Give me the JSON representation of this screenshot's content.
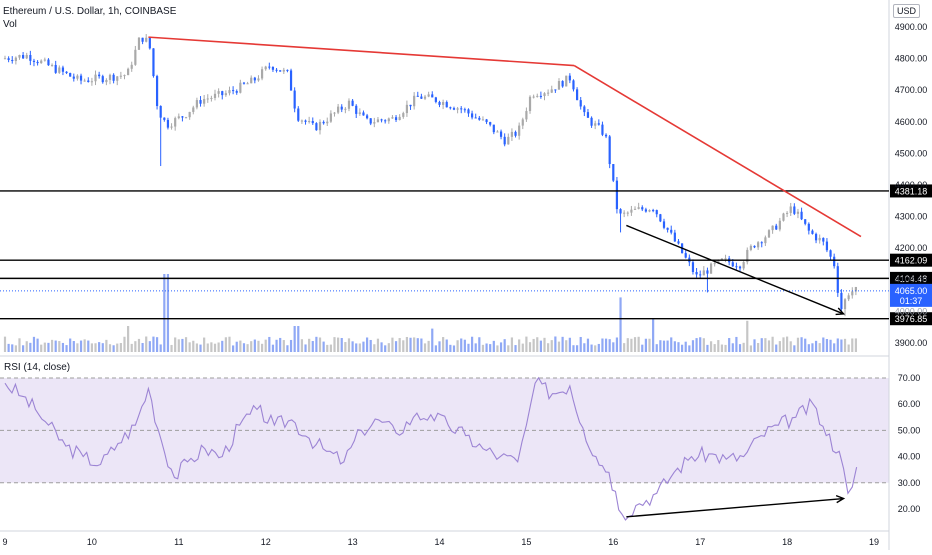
{
  "header": {
    "title": "Ethereum / U.S. Dollar, 1h, COINBASE",
    "volume_label": "Vol",
    "rsi_label": "RSI (14, close)",
    "currency": "USD"
  },
  "colors": {
    "up": "#a9a9a9",
    "down": "#2962ff",
    "trend_red": "#e53935",
    "arrow": "#000000",
    "rsi_line": "#9c84d4",
    "rsi_band": "#ece6f7",
    "price_line": "#2962ff"
  },
  "chart_data": [
    {
      "type": "candlestick",
      "name": "price",
      "ylim": [
        3870,
        4930
      ],
      "y_ticks": [
        3900,
        4000,
        4100,
        4200,
        4300,
        4400,
        4500,
        4600,
        4700,
        4800,
        4900
      ],
      "y_tick_labels": [
        "3900.00",
        "4000.00",
        "4100.00",
        "4200.00",
        "4300.00",
        "4400.00",
        "4500.00",
        "4600.00",
        "4700.00",
        "4800.00",
        "4900.00"
      ],
      "x_range": [
        9,
        19
      ],
      "x_ticks": [
        9,
        10,
        11,
        12,
        13,
        14,
        15,
        16,
        17,
        18,
        19
      ],
      "x_tick_labels": [
        "9",
        "10",
        "11",
        "12",
        "13",
        "14",
        "15",
        "16",
        "17",
        "18",
        "19"
      ],
      "horizontal_levels": [
        {
          "value": 4381.18,
          "label": "4381.18"
        },
        {
          "value": 4162.09,
          "label": "4162.09"
        },
        {
          "value": 4104.48,
          "label": "4104.48"
        },
        {
          "value": 3976.85,
          "label": "3976.85"
        }
      ],
      "current_price": {
        "value": 4065.0,
        "label": "4065.00",
        "countdown": "01:37"
      },
      "hidden_tick_label": "4000.00",
      "trendlines": [
        {
          "role": "resistance-1",
          "points": [
            [
              10.65,
              4868
            ],
            [
              15.55,
              4778
            ]
          ]
        },
        {
          "role": "resistance-2",
          "points": [
            [
              15.55,
              4778
            ],
            [
              18.85,
              4237
            ]
          ]
        }
      ],
      "arrows": [
        {
          "role": "price-divergence-arrow",
          "from": [
            16.15,
            4272
          ],
          "to": [
            18.65,
            3992
          ]
        }
      ],
      "path_keypoints": [
        [
          9.0,
          4800
        ],
        [
          9.3,
          4810
        ],
        [
          9.6,
          4770
        ],
        [
          9.9,
          4730
        ],
        [
          10.2,
          4740
        ],
        [
          10.45,
          4750
        ],
        [
          10.6,
          4870
        ],
        [
          10.7,
          4850
        ],
        [
          10.8,
          4640
        ],
        [
          10.9,
          4590
        ],
        [
          11.1,
          4620
        ],
        [
          11.3,
          4670
        ],
        [
          11.6,
          4690
        ],
        [
          11.9,
          4730
        ],
        [
          12.1,
          4780
        ],
        [
          12.3,
          4750
        ],
        [
          12.4,
          4620
        ],
        [
          12.6,
          4580
        ],
        [
          12.8,
          4620
        ],
        [
          13.0,
          4660
        ],
        [
          13.2,
          4600
        ],
        [
          13.5,
          4610
        ],
        [
          13.8,
          4680
        ],
        [
          14.0,
          4670
        ],
        [
          14.3,
          4640
        ],
        [
          14.6,
          4590
        ],
        [
          14.8,
          4540
        ],
        [
          14.95,
          4570
        ],
        [
          15.1,
          4690
        ],
        [
          15.3,
          4700
        ],
        [
          15.55,
          4740
        ],
        [
          15.7,
          4620
        ],
        [
          15.95,
          4560
        ],
        [
          16.1,
          4300
        ],
        [
          16.3,
          4320
        ],
        [
          16.5,
          4330
        ],
        [
          16.8,
          4200
        ],
        [
          17.0,
          4110
        ],
        [
          17.3,
          4160
        ],
        [
          17.5,
          4150
        ],
        [
          17.65,
          4210
        ],
        [
          17.85,
          4250
        ],
        [
          18.1,
          4330
        ],
        [
          18.3,
          4250
        ],
        [
          18.45,
          4220
        ],
        [
          18.6,
          4140
        ],
        [
          18.65,
          4000
        ],
        [
          18.75,
          4060
        ],
        [
          18.8,
          4065
        ]
      ],
      "volume_spikes": [
        [
          10.85,
          3.0
        ],
        [
          16.08,
          2.1
        ],
        [
          17.55,
          1.2
        ],
        [
          16.45,
          1.3
        ],
        [
          12.35,
          1.0
        ],
        [
          13.9,
          0.9
        ],
        [
          10.4,
          1.0
        ]
      ]
    },
    {
      "type": "line",
      "name": "RSI (14, close)",
      "ylim": [
        10,
        75
      ],
      "y_ticks": [
        20,
        30,
        40,
        50,
        60,
        70
      ],
      "y_tick_labels": [
        "20.00",
        "30.00",
        "40.00",
        "50.00",
        "60.00",
        "70.00"
      ],
      "band": [
        30,
        70
      ],
      "midline": 50,
      "x": [
        9.0,
        9.2,
        9.35,
        9.5,
        9.7,
        9.9,
        10.1,
        10.3,
        10.5,
        10.65,
        10.8,
        10.95,
        11.1,
        11.3,
        11.5,
        11.7,
        11.9,
        12.1,
        12.3,
        12.5,
        12.7,
        12.9,
        13.1,
        13.3,
        13.5,
        13.7,
        13.9,
        14.1,
        14.3,
        14.5,
        14.7,
        14.9,
        15.0,
        15.1,
        15.3,
        15.5,
        15.65,
        15.8,
        15.95,
        16.1,
        16.3,
        16.5,
        16.7,
        16.9,
        17.1,
        17.3,
        17.5,
        17.7,
        17.9,
        18.1,
        18.3,
        18.45,
        18.6,
        18.7,
        18.8
      ],
      "values": [
        68,
        63,
        58,
        52,
        44,
        40,
        37,
        45,
        52,
        66,
        46,
        32,
        38,
        43,
        40,
        52,
        58,
        52,
        54,
        47,
        42,
        38,
        50,
        54,
        49,
        55,
        56,
        52,
        48,
        43,
        40,
        38,
        52,
        68,
        64,
        67,
        51,
        40,
        34,
        18,
        22,
        26,
        34,
        40,
        41,
        39,
        40,
        48,
        52,
        55,
        60,
        48,
        42,
        26,
        36
      ],
      "arrows": [
        {
          "role": "rsi-divergence-arrow",
          "from": [
            16.15,
            17
          ],
          "to": [
            18.65,
            24
          ]
        }
      ]
    }
  ]
}
